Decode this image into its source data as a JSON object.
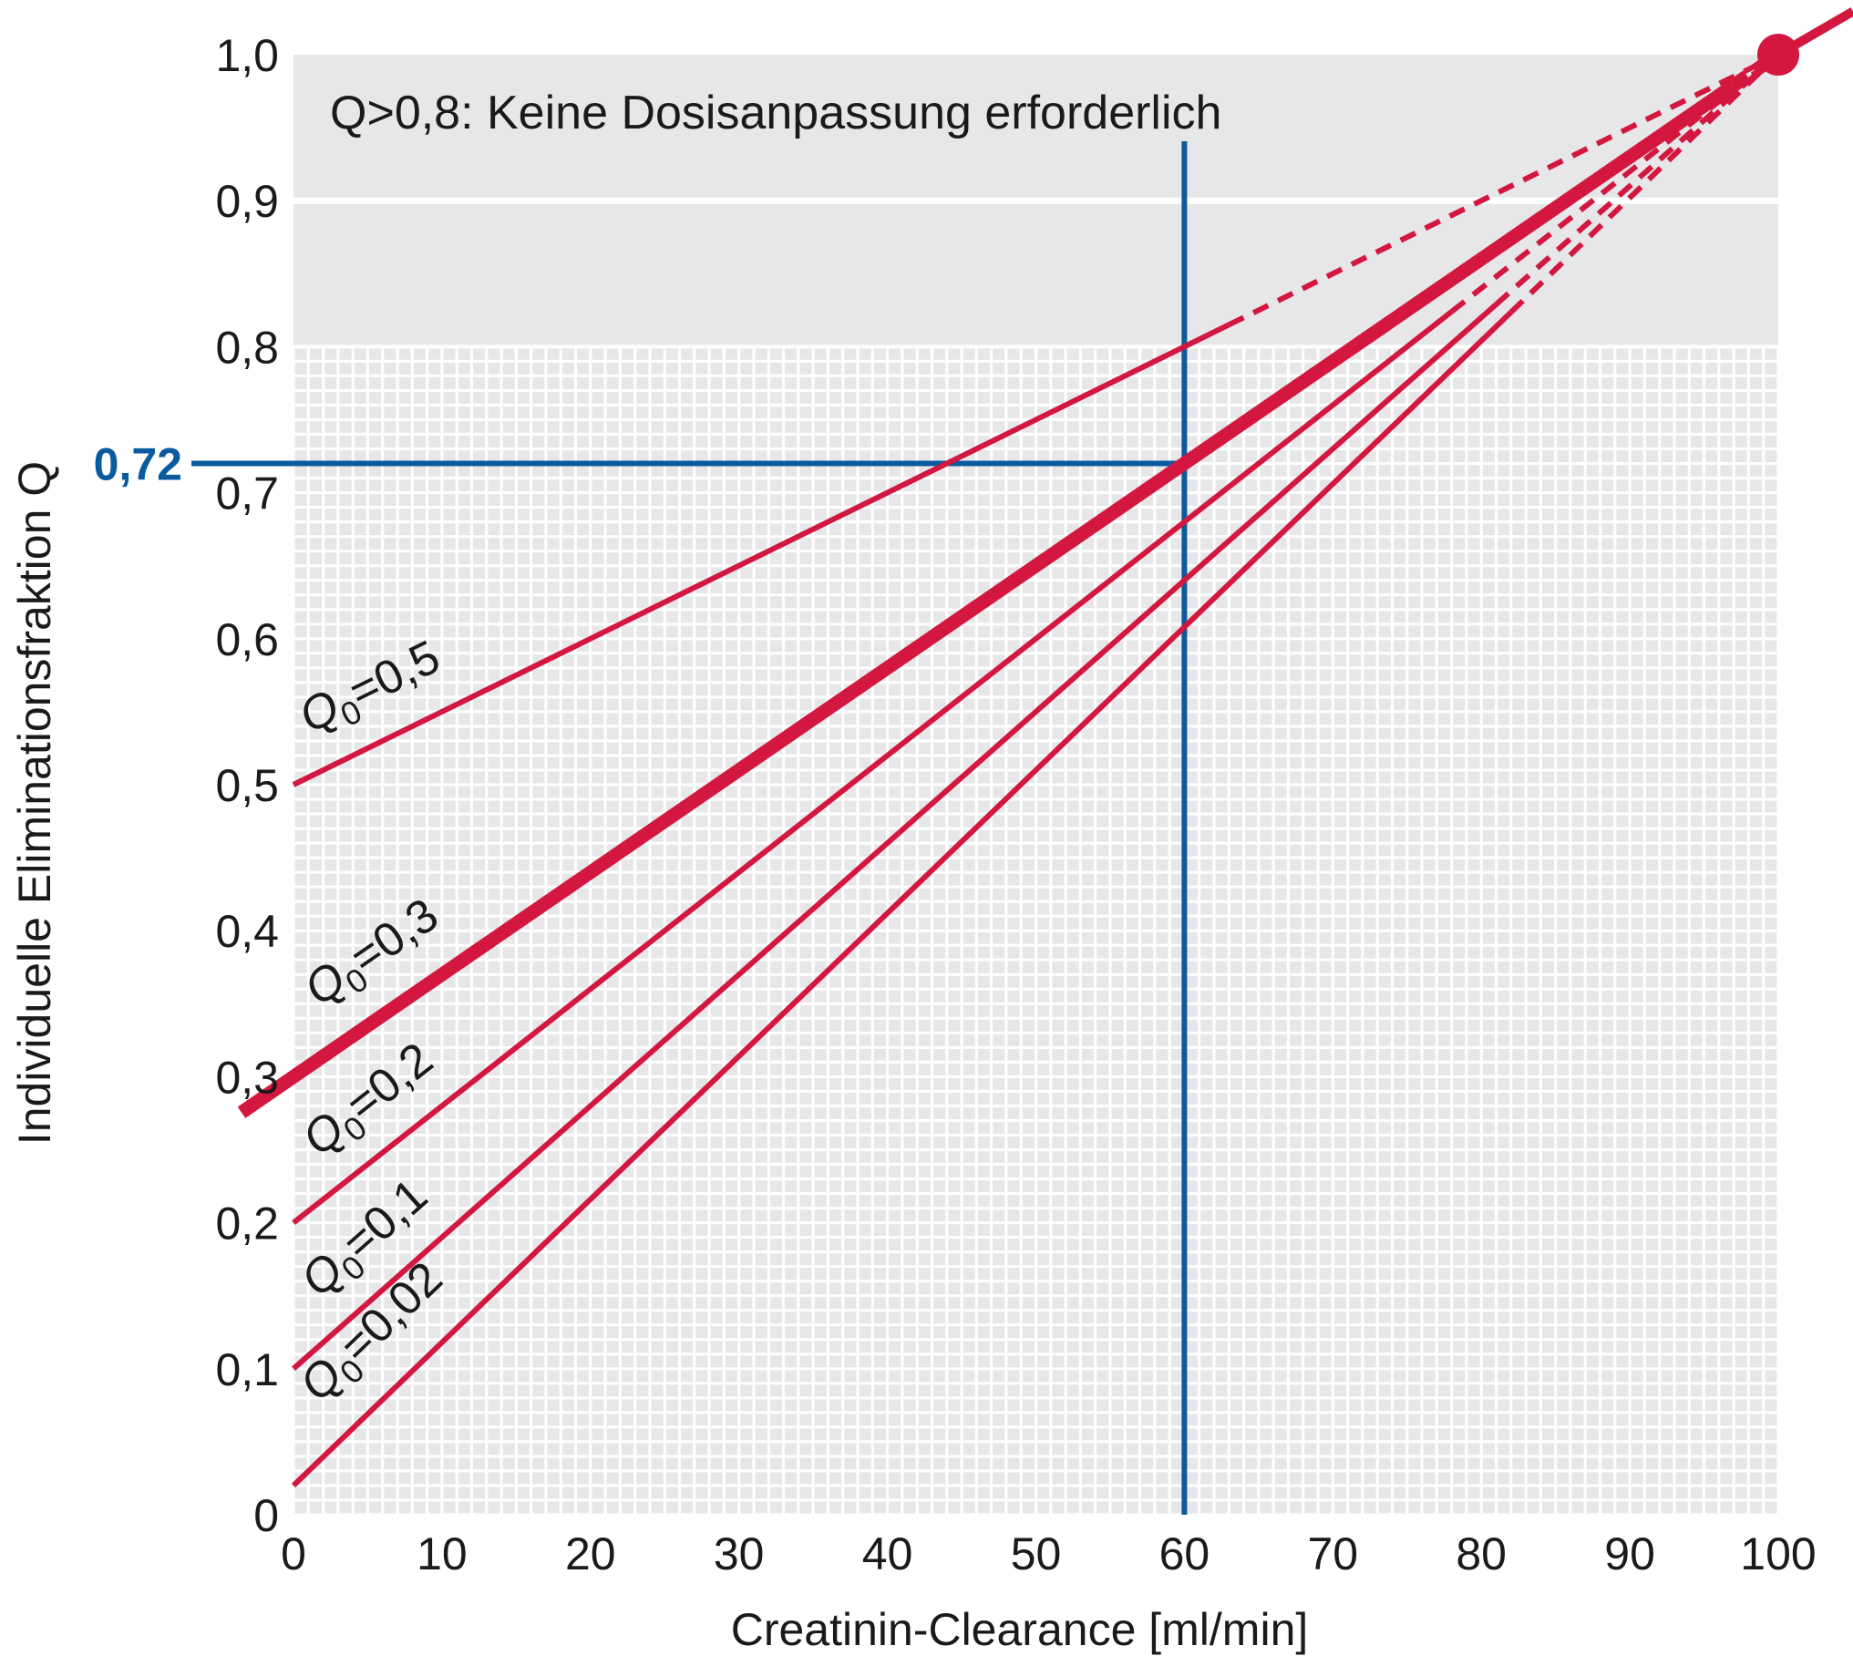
{
  "chart_data": {
    "type": "line",
    "xlabel": "Creatinin-Clearance [ml/min]",
    "ylabel": "Individuelle Eliminationsfraktion Q",
    "xlim": [
      0,
      100
    ],
    "ylim": [
      0,
      1.0
    ],
    "x_ticks": [
      "0",
      "10",
      "20",
      "30",
      "40",
      "50",
      "60",
      "70",
      "80",
      "90",
      "100"
    ],
    "y_ticks": [
      "0",
      "0,1",
      "0,2",
      "0,3",
      "0,4",
      "0,5",
      "0,6",
      "0,7",
      "0,8",
      "0,9",
      "1,0"
    ],
    "grid": true,
    "shaded_region": {
      "y_range": [
        0.8,
        1.0
      ],
      "label": "Q>0,8: Keine Dosisanpassung erforderlich"
    },
    "series": [
      {
        "name": "Q0=0,5",
        "q0": "0,5",
        "x": [
          0,
          100
        ],
        "y": [
          0.5,
          1.0
        ],
        "highlight": false
      },
      {
        "name": "Q0=0,3",
        "q0": "0,3",
        "x": [
          0,
          100
        ],
        "y": [
          0.3,
          1.0
        ],
        "highlight": true
      },
      {
        "name": "Q0=0,2",
        "q0": "0,2",
        "x": [
          0,
          100
        ],
        "y": [
          0.2,
          1.0
        ],
        "highlight": false
      },
      {
        "name": "Q0=0,1",
        "q0": "0,1",
        "x": [
          0,
          100
        ],
        "y": [
          0.1,
          1.0
        ],
        "highlight": false
      },
      {
        "name": "Q0=0,02",
        "q0": "0,02",
        "x": [
          0,
          100
        ],
        "y": [
          0.02,
          1.0
        ],
        "highlight": false
      }
    ],
    "endpoint": {
      "x": 100,
      "y": 1.0
    },
    "reference": {
      "x": 60,
      "y": 0.72,
      "label": "0,72"
    }
  },
  "colors": {
    "series": "#d3173f",
    "reference": "#0a5aa0",
    "shade": "#e7e7e9",
    "grid_bg": "#e7e7e9",
    "grid_line": "#ffffff",
    "text": "#1a1a1a"
  }
}
